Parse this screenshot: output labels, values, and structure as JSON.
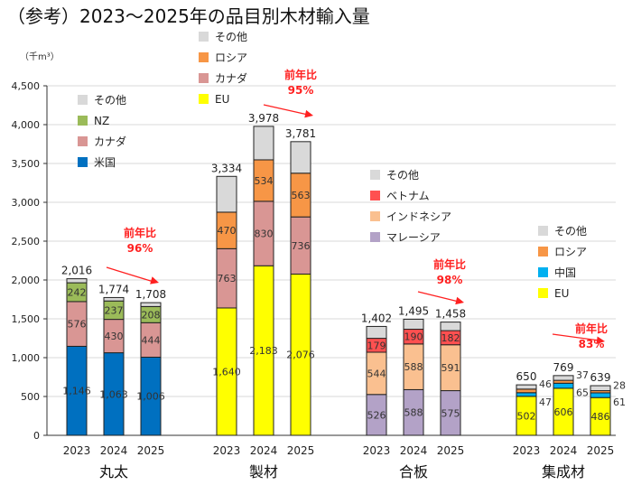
{
  "chart_data": {
    "type": "bar",
    "stacked": true,
    "title": "（参考）2023～2025年の品目別木材輸入量",
    "unit": "（千m³）",
    "ylim": [
      0,
      4500
    ],
    "yticks": [
      "0",
      "500",
      "1,000",
      "1,500",
      "2,000",
      "2,500",
      "3,000",
      "3,500",
      "4,000",
      "4,500"
    ],
    "grid": true,
    "groups": [
      {
        "name": "丸太",
        "categories": [
          "2023",
          "2024",
          "2025"
        ],
        "totals": [
          "2,016",
          "1,774",
          "1,708"
        ],
        "ratio_label": "前年比",
        "ratio": "96%",
        "series": [
          {
            "name": "米国",
            "color": "#0070c0",
            "values": [
              1146,
              1063,
              1006
            ],
            "labels": [
              "1,146",
              "1,063",
              "1,006"
            ]
          },
          {
            "name": "カナダ",
            "color": "#d99694",
            "values": [
              576,
              430,
              444
            ],
            "labels": [
              "576",
              "430",
              "444"
            ]
          },
          {
            "name": "NZ",
            "color": "#9bbb59",
            "values": [
              242,
              237,
              208
            ],
            "labels": [
              "242",
              "237",
              "208"
            ]
          },
          {
            "name": "その他",
            "color": "#d9d9d9",
            "values": [
              52,
              44,
              50
            ],
            "labels": [
              "",
              "",
              ""
            ]
          }
        ]
      },
      {
        "name": "製材",
        "categories": [
          "2023",
          "2024",
          "2025"
        ],
        "totals": [
          "3,334",
          "3,978",
          "3,781"
        ],
        "ratio_label": "前年比",
        "ratio": "95%",
        "series": [
          {
            "name": "EU",
            "color": "#ffff00",
            "values": [
              1640,
              2183,
              2076
            ],
            "labels": [
              "1,640",
              "2,183",
              "2,076"
            ]
          },
          {
            "name": "カナダ",
            "color": "#d99694",
            "values": [
              763,
              830,
              736
            ],
            "labels": [
              "763",
              "830",
              "736"
            ]
          },
          {
            "name": "ロシア",
            "color": "#f79646",
            "values": [
              470,
              534,
              563
            ],
            "labels": [
              "470",
              "534",
              "563"
            ]
          },
          {
            "name": "その他",
            "color": "#d9d9d9",
            "values": [
              461,
              431,
              406
            ],
            "labels": [
              "",
              "",
              ""
            ]
          }
        ]
      },
      {
        "name": "合板",
        "categories": [
          "2023",
          "2024",
          "2025"
        ],
        "totals": [
          "1,402",
          "1,495",
          "1,458"
        ],
        "ratio_label": "前年比",
        "ratio": "98%",
        "series": [
          {
            "name": "マレーシア",
            "color": "#b3a2c7",
            "values": [
              526,
              588,
              575
            ],
            "labels": [
              "526",
              "588",
              "575"
            ]
          },
          {
            "name": "インドネシア",
            "color": "#fac090",
            "values": [
              544,
              588,
              591
            ],
            "labels": [
              "544",
              "588",
              "591"
            ]
          },
          {
            "name": "ベトナム",
            "color": "#ff5050",
            "values": [
              179,
              190,
              182
            ],
            "labels": [
              "179",
              "190",
              "182"
            ]
          },
          {
            "name": "その他",
            "color": "#d9d9d9",
            "values": [
              153,
              129,
              110
            ],
            "labels": [
              "",
              "",
              ""
            ]
          }
        ]
      },
      {
        "name": "集成材",
        "categories": [
          "2023",
          "2024",
          "2025"
        ],
        "totals": [
          "650",
          "769",
          "639"
        ],
        "ratio_label": "前年比",
        "ratio": "83%",
        "series": [
          {
            "name": "EU",
            "color": "#ffff00",
            "values": [
              502,
              606,
              486
            ],
            "labels": [
              "502",
              "606",
              "486"
            ]
          },
          {
            "name": "中国",
            "color": "#00b0f0",
            "values": [
              47,
              65,
              61
            ],
            "labels": [
              "47",
              "65",
              "61"
            ],
            "outside": true
          },
          {
            "name": "ロシア",
            "color": "#f79646",
            "values": [
              46,
              37,
              28
            ],
            "labels": [
              "46",
              "37",
              "28"
            ],
            "outside": true
          },
          {
            "name": "その他",
            "color": "#d9d9d9",
            "values": [
              55,
              61,
              64
            ],
            "labels": [
              "",
              "",
              ""
            ]
          }
        ]
      }
    ]
  }
}
